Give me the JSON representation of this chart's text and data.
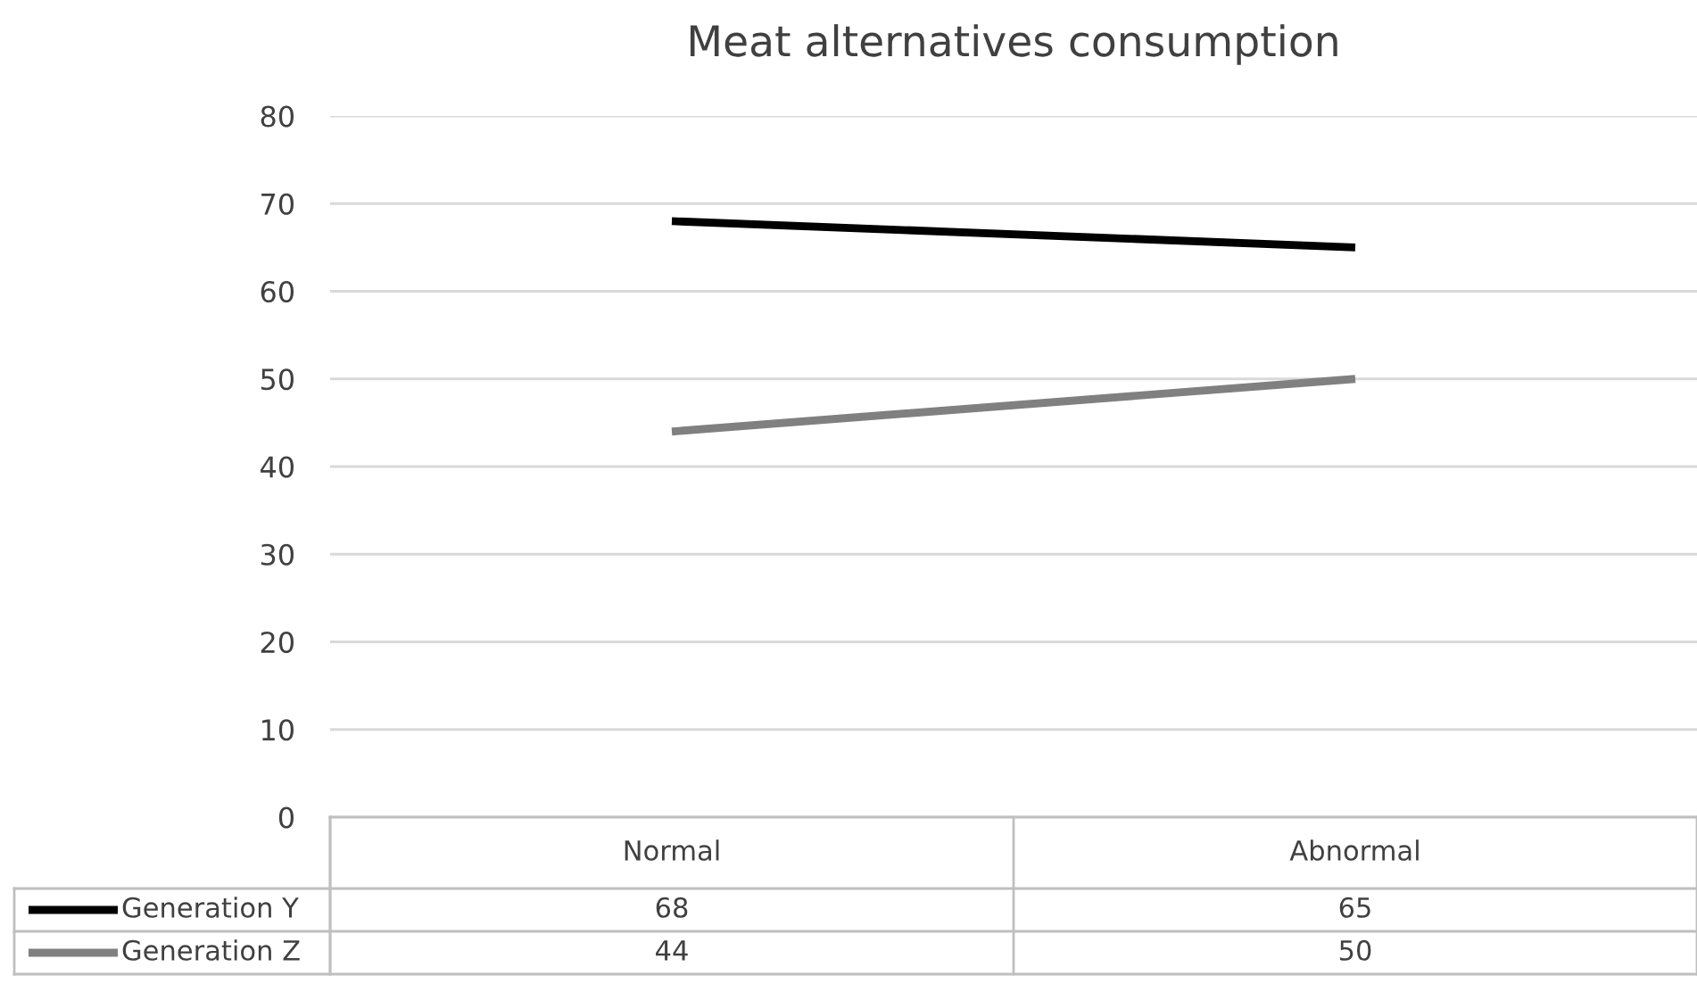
{
  "chart_data": {
    "type": "line",
    "title": "Meat alternatives consumption",
    "categories": [
      "Normal",
      "Abnormal"
    ],
    "series": [
      {
        "name": "Generation Y",
        "color": "#000000",
        "values": [
          68,
          65
        ]
      },
      {
        "name": "Generation Z",
        "color": "#808080",
        "values": [
          44,
          50
        ]
      }
    ],
    "ylim": [
      0,
      80
    ],
    "yticks": [
      0,
      10,
      20,
      30,
      40,
      50,
      60,
      70,
      80
    ],
    "grid": "y",
    "legend": "bottom",
    "data_labels": true
  }
}
